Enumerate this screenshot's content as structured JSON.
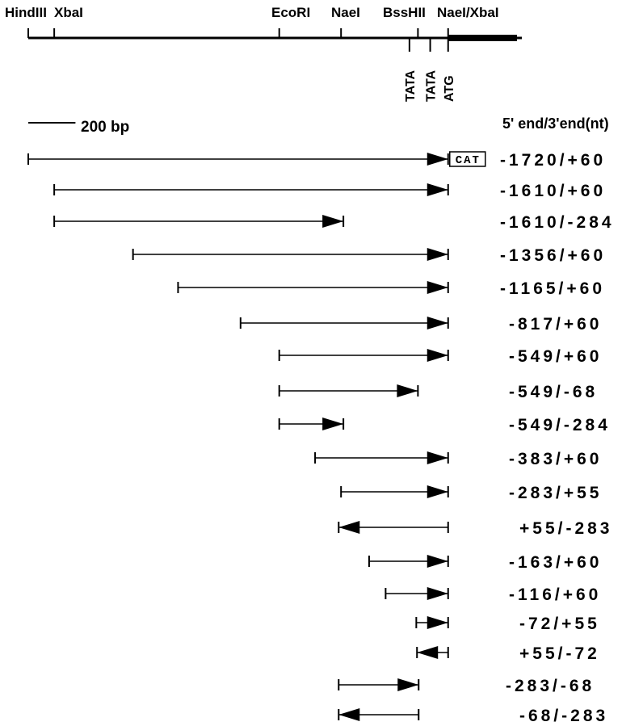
{
  "map": {
    "sites": [
      {
        "label": "HindIII",
        "pos": 0
      },
      {
        "label": "XbaI",
        "pos": 110
      },
      {
        "label": "EcoRI",
        "pos": 1064
      },
      {
        "label": "NaeI",
        "pos": 1326
      },
      {
        "label": "BssHII",
        "pos": 1652
      },
      {
        "label": "NaeI/XbaI",
        "pos": 1780
      }
    ],
    "coding_start": 1780,
    "coding_end": 2072,
    "elements": [
      {
        "label": "TATA",
        "pos": 1616
      },
      {
        "label": "TATA",
        "pos": 1704
      },
      {
        "label": "ATG",
        "pos": 1780
      }
    ]
  },
  "scale_bar": {
    "label": "200  bp",
    "length_bp": 200
  },
  "column_header": "5' end/3'end(nt)",
  "reporter": {
    "label": "CAT"
  },
  "constructs": [
    {
      "label": "-1720/+60",
      "start": 0,
      "end": 1780,
      "direction": "forward",
      "reporter": true
    },
    {
      "label": "-1610/+60",
      "start": 110,
      "end": 1780,
      "direction": "forward"
    },
    {
      "label": "-1610/-284",
      "start": 110,
      "end": 1336,
      "direction": "forward"
    },
    {
      "label": "-1356/+60",
      "start": 444,
      "end": 1780,
      "direction": "forward"
    },
    {
      "label": "-1165/+60",
      "start": 635,
      "end": 1780,
      "direction": "forward"
    },
    {
      "label": "-817/+60",
      "start": 900,
      "end": 1780,
      "direction": "forward"
    },
    {
      "label": "-549/+60",
      "start": 1064,
      "end": 1780,
      "direction": "forward"
    },
    {
      "label": "-549/-68",
      "start": 1064,
      "end": 1652,
      "direction": "forward"
    },
    {
      "label": "-549/-284",
      "start": 1064,
      "end": 1336,
      "direction": "forward"
    },
    {
      "label": "-383/+60",
      "start": 1216,
      "end": 1780,
      "direction": "forward"
    },
    {
      "label": "-283/+55",
      "start": 1326,
      "end": 1780,
      "direction": "forward"
    },
    {
      "label": "+55/-283",
      "start": 1316,
      "end": 1780,
      "direction": "reverse"
    },
    {
      "label": "-163/+60",
      "start": 1445,
      "end": 1780,
      "direction": "forward"
    },
    {
      "label": "-116/+60",
      "start": 1515,
      "end": 1780,
      "direction": "forward"
    },
    {
      "label": "-72/+55",
      "start": 1645,
      "end": 1780,
      "direction": "forward"
    },
    {
      "label": "+55/-72",
      "start": 1648,
      "end": 1780,
      "direction": "reverse"
    },
    {
      "label": "-283/-68",
      "start": 1316,
      "end": 1655,
      "direction": "forward"
    },
    {
      "label": "-68/-283",
      "start": 1316,
      "end": 1655,
      "direction": "reverse"
    }
  ]
}
